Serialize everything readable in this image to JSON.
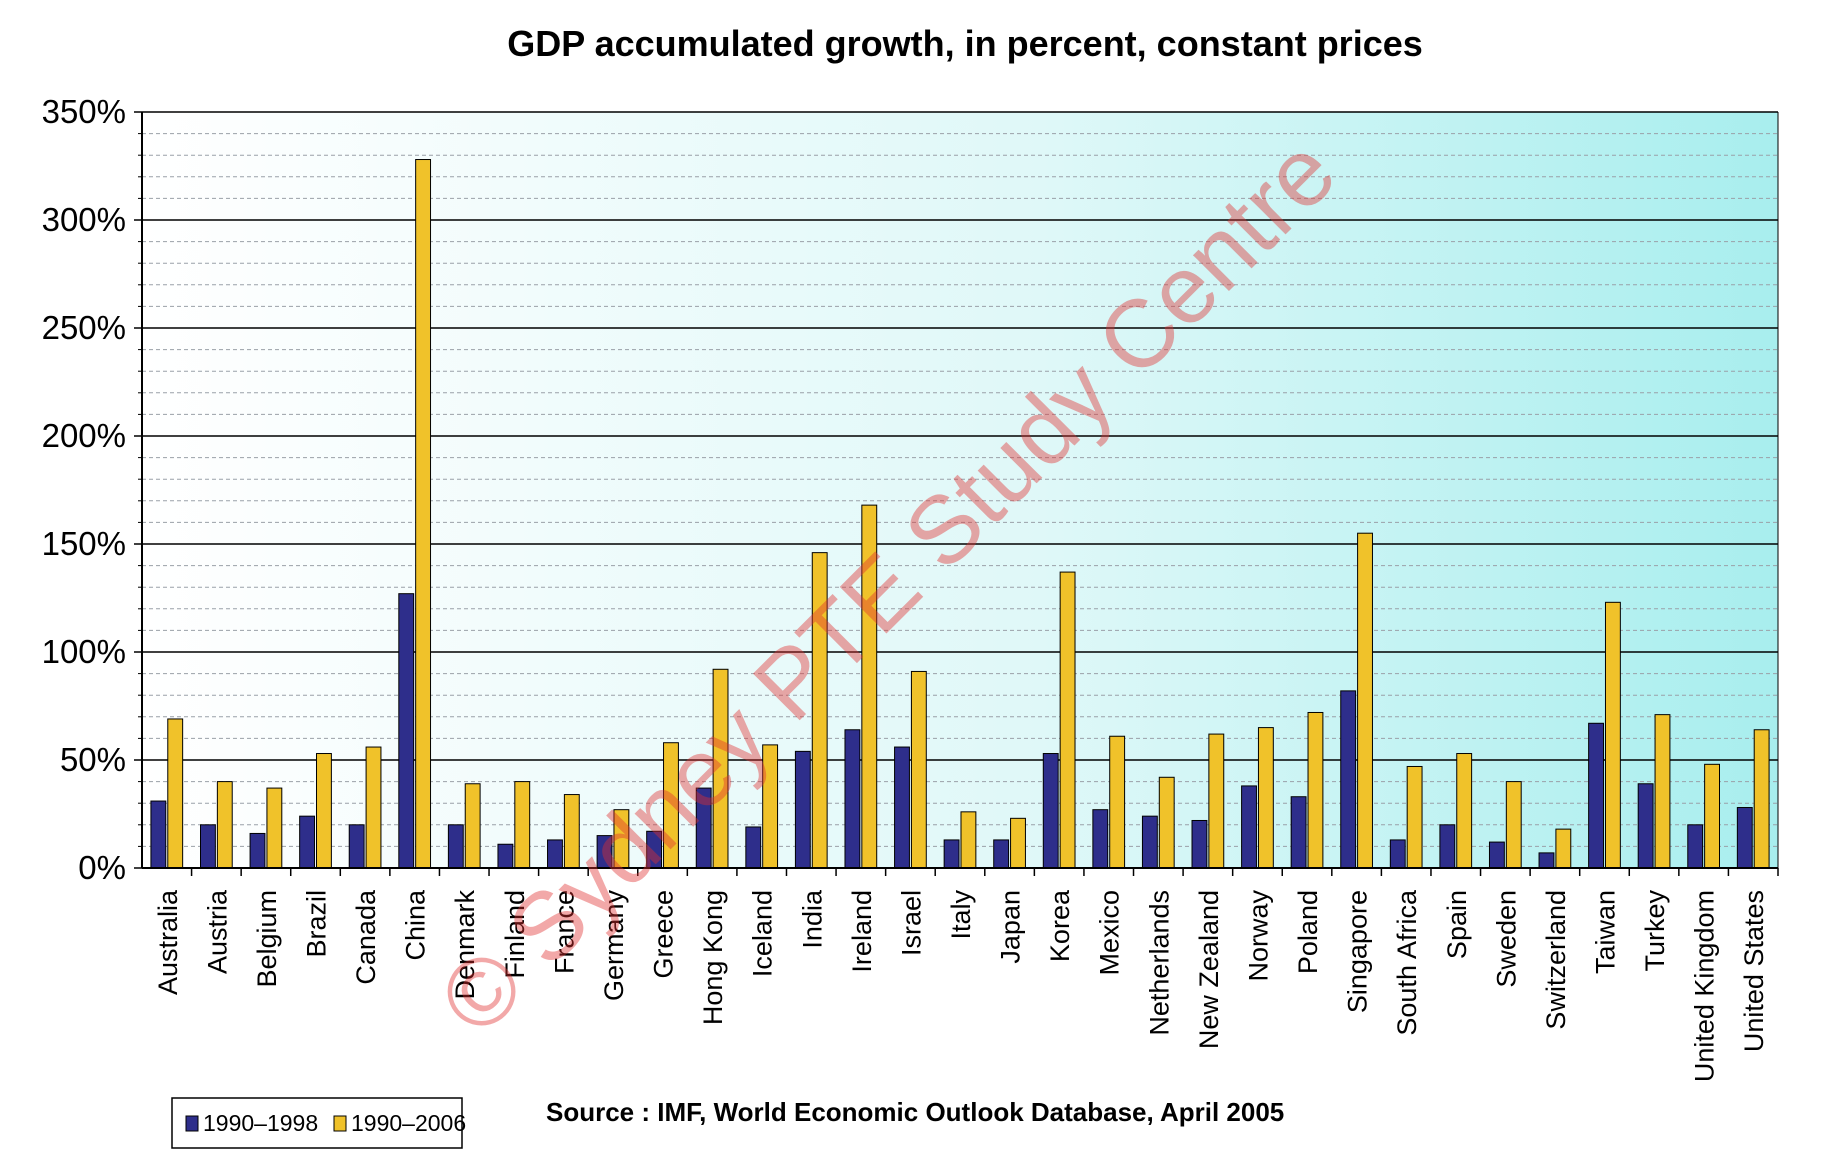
{
  "chart_data": {
    "type": "bar",
    "title": "GDP accumulated growth, in percent, constant prices",
    "xlabel": "",
    "ylabel": "",
    "ylim": [
      0,
      350
    ],
    "yticks": [
      0,
      50,
      100,
      150,
      200,
      250,
      300,
      350
    ],
    "ytick_labels": [
      "0%",
      "50%",
      "100%",
      "150%",
      "200%",
      "250%",
      "300%",
      "350%"
    ],
    "grid": {
      "major_step": 50,
      "minor_step": 10
    },
    "legend_position": "bottom-left",
    "categories": [
      "Australia",
      "Austria",
      "Belgium",
      "Brazil",
      "Canada",
      "China",
      "Denmark",
      "Finland",
      "France",
      "Germany",
      "Greece",
      "Hong Kong",
      "Iceland",
      "India",
      "Ireland",
      "Israel",
      "Italy",
      "Japan",
      "Korea",
      "Mexico",
      "Netherlands",
      "New Zealand",
      "Norway",
      "Poland",
      "Singapore",
      "South Africa",
      "Spain",
      "Sweden",
      "Switzerland",
      "Taiwan",
      "Turkey",
      "United Kingdom",
      "United States"
    ],
    "series": [
      {
        "name": "1990–1998",
        "color": "#2e2e8b",
        "values": [
          31,
          20,
          16,
          24,
          20,
          127,
          20,
          11,
          13,
          15,
          17,
          37,
          19,
          54,
          64,
          56,
          13,
          13,
          53,
          27,
          24,
          22,
          38,
          33,
          82,
          13,
          20,
          12,
          7,
          67,
          39,
          20,
          28
        ]
      },
      {
        "name": "1990–2006",
        "color": "#f0c22a",
        "values": [
          69,
          40,
          37,
          53,
          56,
          328,
          39,
          40,
          34,
          27,
          58,
          92,
          57,
          146,
          168,
          91,
          26,
          23,
          137,
          61,
          42,
          62,
          65,
          72,
          155,
          47,
          53,
          40,
          18,
          123,
          71,
          48,
          64
        ]
      }
    ],
    "source": "Source : IMF, World Economic Outlook Database, April 2005",
    "watermark": "© Sydney PTE Study Centre"
  }
}
